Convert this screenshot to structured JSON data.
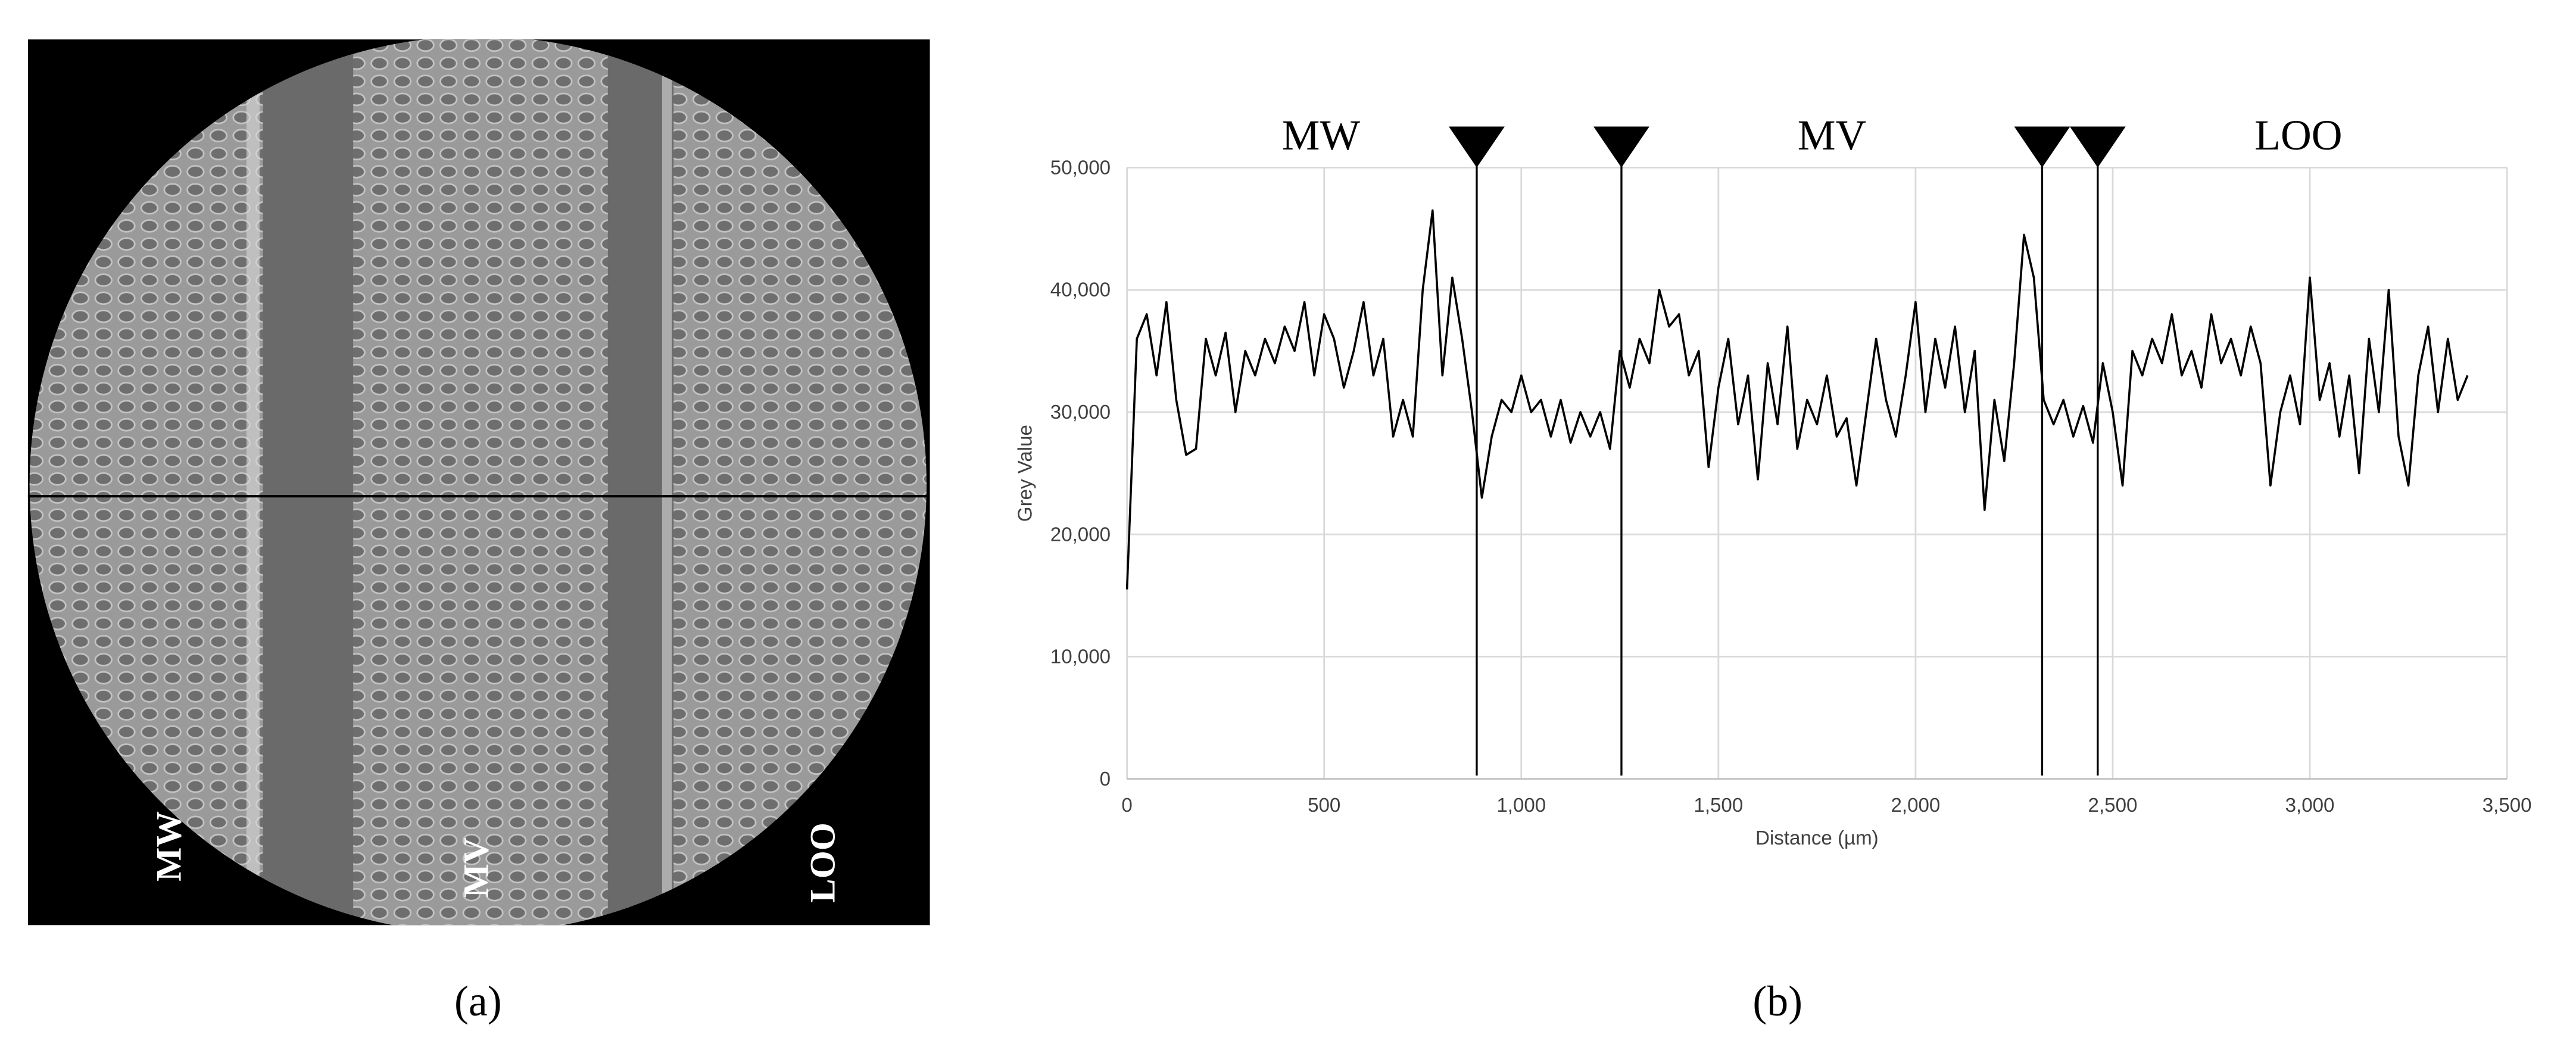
{
  "image": {
    "labels": [
      "MW",
      "MV",
      "LOO"
    ]
  },
  "captions": [
    "(a)",
    "(b)"
  ],
  "chart_data": {
    "type": "line",
    "xlabel": "Distance (µm)",
    "ylabel": "Grey Value",
    "color": "#000000",
    "grid": true,
    "xlim": [
      0,
      3500
    ],
    "xticks": [
      0,
      500,
      {
        "value": 1000,
        "label": "1,000"
      },
      {
        "value": 1500,
        "label": "1,500"
      },
      {
        "value": 2000,
        "label": "2,000"
      },
      {
        "value": 2500,
        "label": "2,500"
      },
      {
        "value": 3000,
        "label": "3,000"
      },
      {
        "value": 3500,
        "label": "3,500"
      }
    ],
    "ylim": [
      0,
      50000
    ],
    "yticks": [
      0,
      {
        "value": 10000,
        "label": "10,000"
      },
      {
        "value": 20000,
        "label": "20,000"
      },
      {
        "value": 30000,
        "label": "30,000"
      },
      {
        "value": 40000,
        "label": "40,000"
      },
      {
        "value": 50000,
        "label": "50,000"
      }
    ],
    "annotations": [
      {
        "text": "MW",
        "x": 492
      },
      {
        "text": "MV",
        "x": 1788
      },
      {
        "text": "LOO",
        "x": 2971
      }
    ],
    "boundaries": [
      887,
      1254,
      2321,
      2462
    ],
    "x": [
      0,
      25,
      50,
      75,
      100,
      125,
      150,
      175,
      200,
      225,
      250,
      275,
      300,
      325,
      350,
      375,
      400,
      425,
      450,
      475,
      500,
      525,
      550,
      575,
      600,
      625,
      650,
      675,
      700,
      725,
      750,
      775,
      800,
      825,
      850,
      875,
      900,
      925,
      950,
      975,
      1000,
      1025,
      1050,
      1075,
      1100,
      1125,
      1150,
      1175,
      1200,
      1225,
      1250,
      1275,
      1300,
      1325,
      1350,
      1375,
      1400,
      1425,
      1450,
      1475,
      1500,
      1525,
      1550,
      1575,
      1600,
      1625,
      1650,
      1675,
      1700,
      1725,
      1750,
      1775,
      1800,
      1825,
      1850,
      1875,
      1900,
      1925,
      1950,
      1975,
      2000,
      2025,
      2050,
      2075,
      2100,
      2125,
      2150,
      2175,
      2200,
      2225,
      2250,
      2275,
      2300,
      2325,
      2350,
      2375,
      2400,
      2425,
      2450,
      2475,
      2500,
      2525,
      2550,
      2575,
      2600,
      2625,
      2650,
      2675,
      2700,
      2725,
      2750,
      2775,
      2800,
      2825,
      2850,
      2875,
      2900,
      2925,
      2950,
      2975,
      3000,
      3025,
      3050,
      3075,
      3100,
      3125,
      3150,
      3175,
      3200,
      3225,
      3250,
      3275,
      3300,
      3325,
      3350,
      3375,
      3400
    ],
    "values": [
      15500,
      36000,
      38000,
      33000,
      39000,
      31000,
      26500,
      27000,
      36000,
      33000,
      36500,
      30000,
      35000,
      33000,
      36000,
      34000,
      37000,
      35000,
      39000,
      33000,
      38000,
      36000,
      32000,
      35000,
      39000,
      33000,
      36000,
      28000,
      31000,
      28000,
      40000,
      46500,
      33000,
      41000,
      36000,
      30000,
      23000,
      28000,
      31000,
      30000,
      33000,
      30000,
      31000,
      28000,
      31000,
      27500,
      30000,
      28000,
      30000,
      27000,
      35000,
      32000,
      36000,
      34000,
      40000,
      37000,
      38000,
      33000,
      35000,
      25500,
      32000,
      36000,
      29000,
      33000,
      24500,
      34000,
      29000,
      37000,
      27000,
      31000,
      29000,
      33000,
      28000,
      29500,
      24000,
      30000,
      36000,
      31000,
      28000,
      33000,
      39000,
      30000,
      36000,
      32000,
      37000,
      30000,
      35000,
      22000,
      31000,
      26000,
      34000,
      44500,
      41000,
      31000,
      29000,
      31000,
      28000,
      30500,
      27500,
      34000,
      30000,
      24000,
      35000,
      33000,
      36000,
      34000,
      38000,
      33000,
      35000,
      32000,
      38000,
      34000,
      36000,
      33000,
      37000,
      34000,
      24000,
      30000,
      33000,
      29000,
      41000,
      31000,
      34000,
      28000,
      33000,
      25000,
      36000,
      30000,
      40000,
      28000,
      24000,
      33000,
      37000,
      30000,
      36000,
      31000,
      33000
    ]
  }
}
